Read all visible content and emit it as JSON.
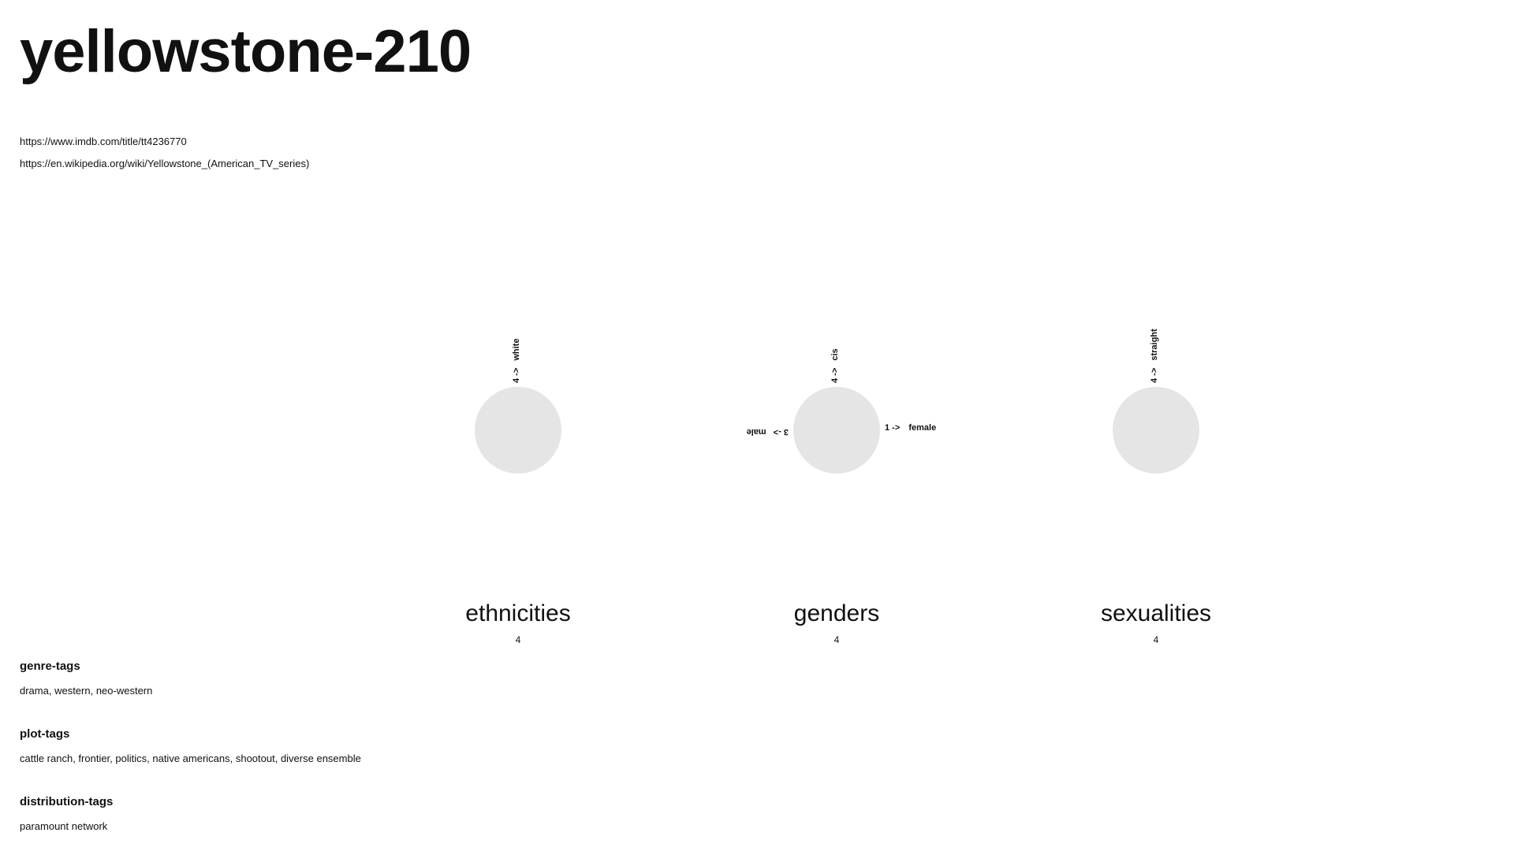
{
  "title": "yellowstone-210",
  "links": [
    "https://www.imdb.com/title/tt4236770",
    "https://en.wikipedia.org/wiki/Yellowstone_(American_TV_series)"
  ],
  "colors": {
    "circle": "#e5e5e5",
    "text": "#111111"
  },
  "chart_data": [
    {
      "type": "pie",
      "title": "ethnicities",
      "total": "4",
      "slices": [
        {
          "label": "white",
          "value": 4
        }
      ]
    },
    {
      "type": "pie",
      "title": "genders",
      "total": "4",
      "slices": [
        {
          "label": "male",
          "value": 3
        },
        {
          "label": "female",
          "value": 1
        }
      ],
      "secondary": [
        {
          "label": "cis",
          "value": 4
        }
      ]
    },
    {
      "type": "pie",
      "title": "sexualities",
      "total": "4",
      "slices": [
        {
          "label": "straight",
          "value": 4
        }
      ]
    }
  ],
  "tags": [
    {
      "heading": "genre-tags",
      "values": "drama, western, neo-western"
    },
    {
      "heading": "plot-tags",
      "values": "cattle ranch, frontier, politics, native americans, shootout, diverse ensemble"
    },
    {
      "heading": "distribution-tags",
      "values": "paramount network"
    }
  ]
}
